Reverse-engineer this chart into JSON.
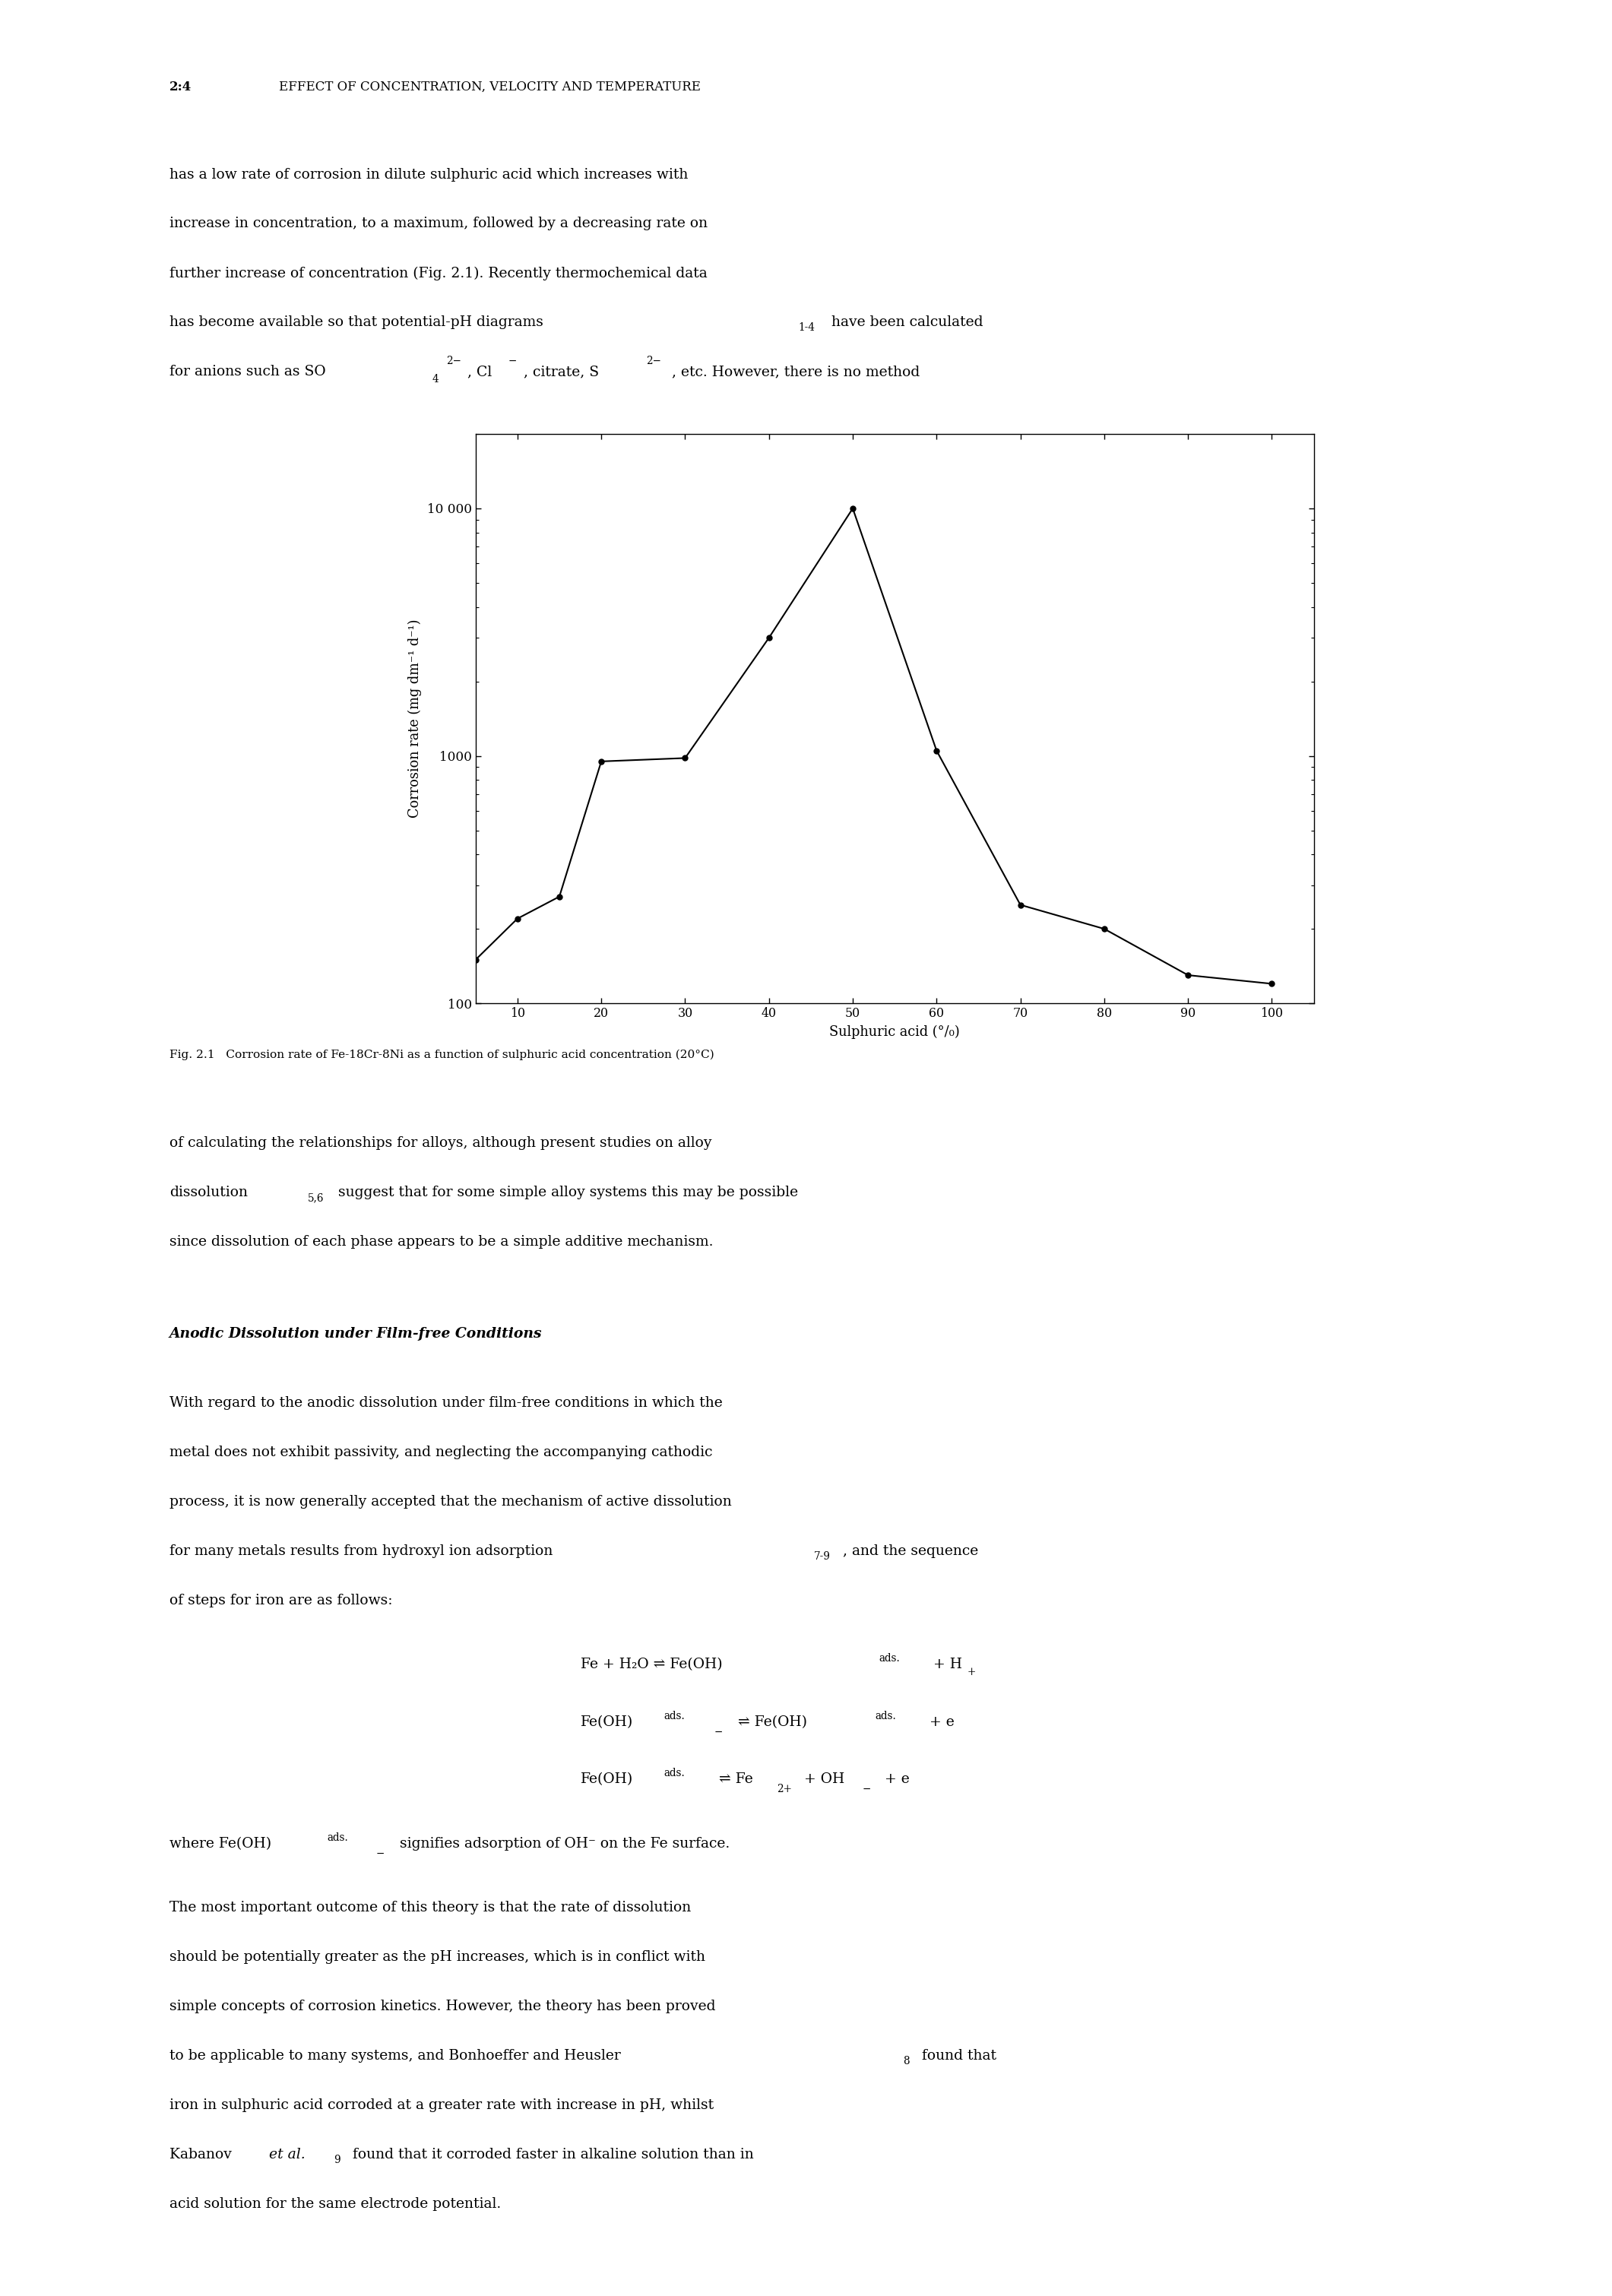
{
  "page_width": 21.21,
  "page_height": 30.21,
  "bg_color": "#ffffff",
  "header_number": "2:4",
  "header_title": "EFFECT OF CONCENTRATION, VELOCITY AND TEMPERATURE",
  "chart_x_data": [
    5,
    10,
    15,
    20,
    30,
    40,
    50,
    60,
    70,
    80,
    90,
    100
  ],
  "chart_y_data": [
    150,
    220,
    270,
    950,
    980,
    3000,
    10000,
    1050,
    250,
    200,
    130,
    120
  ],
  "ylabel": "Corrosion rate (mg dm⁻¹ d⁻¹)",
  "xlabel": "Sulphuric acid (°/₀)",
  "y_ticks": [
    100,
    1000,
    10000
  ],
  "y_tick_labels": [
    "100",
    "1000",
    "10 000"
  ],
  "x_ticks": [
    10,
    20,
    30,
    40,
    50,
    60,
    70,
    80,
    90,
    100
  ],
  "ylim": [
    100,
    20000
  ],
  "xlim": [
    5,
    105
  ],
  "fig_caption": "Fig. 2.1   Corrosion rate of Fe-18Cr-8Ni as a function of sulphuric acid concentration (20°C)",
  "font_family": "serif"
}
